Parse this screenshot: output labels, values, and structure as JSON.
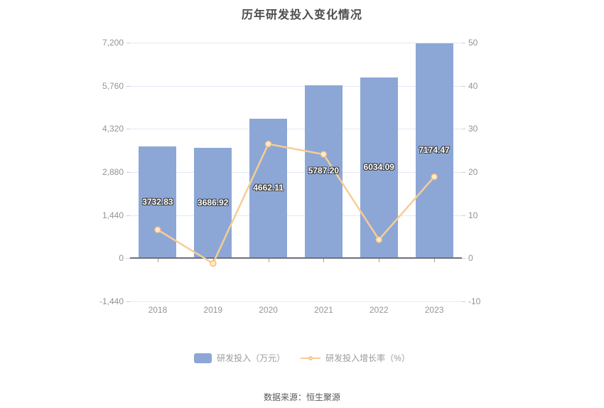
{
  "chart_data": {
    "type": "bar",
    "title": "历年研发投入变化情况",
    "categories": [
      "2018",
      "2019",
      "2020",
      "2021",
      "2022",
      "2023"
    ],
    "series": [
      {
        "name": "研发投入（万元）",
        "type": "bar",
        "values": [
          3732.83,
          3686.92,
          4662.11,
          5787.2,
          6034.09,
          7174.47
        ],
        "labels": [
          "3732.83",
          "3686.92",
          "4662.11",
          "5787.20",
          "6034.09",
          "7174.47"
        ],
        "color": "#8ca7d6",
        "axis": "left"
      },
      {
        "name": "研发投入增长率（%）",
        "type": "line",
        "values": [
          6.6,
          -1.2,
          26.5,
          24.1,
          4.3,
          18.9
        ],
        "color": "#f6cd94",
        "axis": "right"
      }
    ],
    "left_axis": {
      "min": -1440,
      "max": 7200,
      "ticks": [
        "7,200",
        "5,760",
        "4,320",
        "2,880",
        "1,440",
        "0",
        "-1,440"
      ]
    },
    "right_axis": {
      "min": -10,
      "max": 50,
      "ticks": [
        "50",
        "40",
        "30",
        "20",
        "10",
        "0",
        "-10"
      ]
    },
    "legend_position": "bottom",
    "grid": true,
    "source": "数据来源：恒生聚源"
  }
}
